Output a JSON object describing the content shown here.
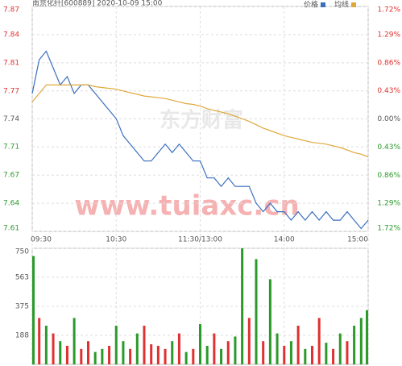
{
  "chart_data": [
    {
      "type": "line",
      "title": "南京化纤[600889] 2020-10-09 15:00",
      "watermarks": [
        "东方财富",
        "www.tuiaxc.cn"
      ],
      "x": [
        0,
        5,
        10,
        15,
        20,
        25,
        30,
        35,
        40,
        45,
        50,
        55,
        60,
        65,
        70,
        75,
        80,
        85,
        90,
        95,
        100,
        105,
        110,
        115,
        120,
        125,
        130,
        135,
        140,
        145,
        150,
        155,
        160,
        165,
        170,
        175,
        180,
        185,
        190,
        195,
        200,
        205,
        210,
        215,
        220,
        225,
        230,
        235,
        240
      ],
      "xlim": [
        0,
        240
      ],
      "xticks": [
        {
          "value": 0,
          "label": "09:30"
        },
        {
          "value": 60,
          "label": "10:30"
        },
        {
          "value": 120,
          "label": "11:30/13:00"
        },
        {
          "value": 180,
          "label": "14:00"
        },
        {
          "value": 240,
          "label": "15:00"
        }
      ],
      "ylim": [
        7.6067,
        7.873
      ],
      "yticks": [
        {
          "value": 7.873,
          "label": "7.87"
        },
        {
          "value": 7.8397,
          "label": "7.84"
        },
        {
          "value": 7.8063,
          "label": "7.81"
        },
        {
          "value": 7.773,
          "label": "7.77"
        },
        7.74,
        {
          "value": 7.7067,
          "label": "7.71"
        },
        {
          "value": 7.6733,
          "label": "7.67"
        },
        7.64,
        {
          "value": 7.6067,
          "label": "7.61"
        }
      ],
      "y2lim": [
        -1.72,
        1.72
      ],
      "y2ticks": [
        {
          "value": 1.72,
          "label": "1.72%"
        },
        {
          "value": 1.29,
          "label": "1.29%"
        },
        {
          "value": 0.86,
          "label": "0.86%"
        },
        {
          "value": 0.43,
          "label": "0.43%"
        },
        {
          "value": 0,
          "label": "0.00%"
        },
        {
          "value": -0.43,
          "label": "0.43%"
        },
        {
          "value": -0.86,
          "label": "0.86%"
        },
        {
          "value": -1.29,
          "label": "1.29%"
        },
        {
          "value": -1.72,
          "label": "1.72%"
        }
      ],
      "up_color": "#e03030",
      "down_color": "#2a9a2a",
      "flat_color": "#555555",
      "grid": true,
      "series": [
        {
          "name": "价格",
          "color": "#3a6fbf",
          "values": [
            7.77,
            7.81,
            7.82,
            7.8,
            7.78,
            7.79,
            7.77,
            7.78,
            7.78,
            7.77,
            7.76,
            7.75,
            7.74,
            7.72,
            7.71,
            7.7,
            7.69,
            7.69,
            7.7,
            7.71,
            7.7,
            7.71,
            7.7,
            7.69,
            7.69,
            7.67,
            7.67,
            7.66,
            7.67,
            7.66,
            7.66,
            7.66,
            7.64,
            7.63,
            7.64,
            7.63,
            7.63,
            7.62,
            7.63,
            7.62,
            7.63,
            7.62,
            7.63,
            7.62,
            7.62,
            7.63,
            7.62,
            7.61,
            7.62
          ]
        },
        {
          "name": "均线",
          "color": "#e0a83a",
          "values": [
            7.76,
            7.77,
            7.78,
            7.78,
            7.78,
            7.78,
            7.78,
            7.78,
            7.78,
            7.778,
            7.777,
            7.776,
            7.775,
            7.773,
            7.771,
            7.769,
            7.767,
            7.766,
            7.765,
            7.764,
            7.762,
            7.76,
            7.758,
            7.757,
            7.755,
            7.752,
            7.75,
            7.748,
            7.746,
            7.743,
            7.74,
            7.737,
            7.733,
            7.729,
            7.726,
            7.723,
            7.72,
            7.718,
            7.716,
            7.714,
            7.712,
            7.711,
            7.71,
            7.708,
            7.706,
            7.703,
            7.7,
            7.698,
            7.695
          ]
        }
      ]
    },
    {
      "type": "bar",
      "x": [
        0,
        5,
        10,
        15,
        20,
        25,
        30,
        35,
        40,
        45,
        50,
        55,
        60,
        65,
        70,
        75,
        80,
        85,
        90,
        95,
        100,
        105,
        110,
        115,
        120,
        125,
        130,
        135,
        140,
        145,
        150,
        155,
        160,
        165,
        170,
        175,
        180,
        185,
        190,
        195,
        200,
        205,
        210,
        215,
        220,
        225,
        230,
        235,
        240
      ],
      "xlim": [
        0,
        240
      ],
      "ylim": [
        0,
        750
      ],
      "yticks": [
        188,
        375,
        563,
        750
      ],
      "values": [
        700,
        300,
        250,
        200,
        150,
        120,
        300,
        100,
        150,
        80,
        100,
        120,
        250,
        150,
        100,
        200,
        250,
        130,
        120,
        100,
        150,
        200,
        80,
        100,
        260,
        120,
        200,
        100,
        150,
        180,
        750,
        300,
        680,
        150,
        550,
        200,
        120,
        150,
        250,
        100,
        120,
        300,
        140,
        100,
        200,
        150,
        250,
        300,
        350
      ],
      "colors": [
        "#2a9a2a",
        "#e03030",
        "#2a9a2a",
        "#e03030",
        "#2a9a2a",
        "#e03030",
        "#2a9a2a",
        "#e03030",
        "#e03030",
        "#2a9a2a",
        "#2a9a2a",
        "#e03030",
        "#2a9a2a",
        "#2a9a2a",
        "#e03030",
        "#2a9a2a",
        "#e03030",
        "#e03030",
        "#e03030",
        "#e03030",
        "#2a9a2a",
        "#e03030",
        "#2a9a2a",
        "#e03030",
        "#2a9a2a",
        "#2a9a2a",
        "#e03030",
        "#2a9a2a",
        "#e03030",
        "#2a9a2a",
        "#2a9a2a",
        "#e03030",
        "#2a9a2a",
        "#e03030",
        "#2a9a2a",
        "#2a9a2a",
        "#e03030",
        "#2a9a2a",
        "#e03030",
        "#2a9a2a",
        "#e03030",
        "#e03030",
        "#2a9a2a",
        "#e03030",
        "#2a9a2a",
        "#e03030",
        "#2a9a2a",
        "#2a9a2a",
        "#2a9a2a"
      ]
    }
  ]
}
